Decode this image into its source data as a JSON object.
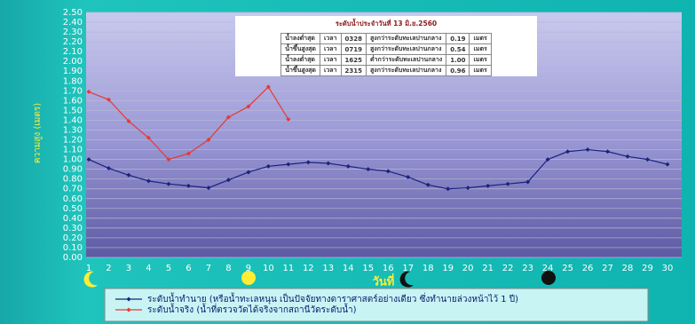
{
  "chart_data": {
    "type": "line",
    "y_label": "ความสูง (เมตร)",
    "x_label": "วันที่",
    "categories": [
      "1",
      "2",
      "3",
      "4",
      "5",
      "6",
      "7",
      "8",
      "9",
      "10",
      "11",
      "12",
      "13",
      "14",
      "15",
      "16",
      "17",
      "18",
      "19",
      "20",
      "21",
      "22",
      "23",
      "24",
      "25",
      "26",
      "27",
      "28",
      "29",
      "30"
    ],
    "series": [
      {
        "name": "ระดับน้ำทำนาย (หรือน้ำทะเลหนุน เป็นปัจจัยทางดาราศาสตร์อย่างเดียว ซึ่งทำนายล่วงหน้าไว้ 1 ปี)",
        "color": "#1a237e",
        "values": [
          1.0,
          0.91,
          0.84,
          0.78,
          0.75,
          0.73,
          0.71,
          0.79,
          0.87,
          0.93,
          0.95,
          0.97,
          0.96,
          0.93,
          0.9,
          0.88,
          0.82,
          0.74,
          0.7,
          0.71,
          0.73,
          0.75,
          0.77,
          1.0,
          1.08,
          1.1,
          1.08,
          1.03,
          1.0,
          0.95
        ]
      },
      {
        "name": "ระดับน้ำจริง (น้ำที่ตรวจวัดได้จริงจากสถานีวัดระดับน้ำ)",
        "color": "#e53935",
        "values": [
          1.69,
          1.61,
          1.39,
          1.22,
          1.0,
          1.06,
          1.2,
          1.43,
          1.54,
          1.74,
          1.41,
          null,
          null,
          null,
          null,
          null,
          null,
          null,
          null,
          null,
          null,
          null,
          null,
          null,
          null,
          null,
          null,
          null,
          null,
          null
        ]
      }
    ],
    "ylim": [
      0,
      2.5
    ],
    "yticks": [
      {
        "value": 0,
        "label": "0.00"
      },
      {
        "value": 0.1,
        "label": "0.10"
      },
      {
        "value": 0.2,
        "label": "0.20"
      },
      {
        "value": 0.3,
        "label": "0.30"
      },
      {
        "value": 0.4,
        "label": "0.40"
      },
      {
        "value": 0.5,
        "label": "0.50"
      },
      {
        "value": 0.6,
        "label": "0.60"
      },
      {
        "value": 0.7,
        "label": "0.70"
      },
      {
        "value": 0.8,
        "label": "0.80"
      },
      {
        "value": 0.9,
        "label": "0.90"
      },
      {
        "value": 1,
        "label": "1.00"
      },
      {
        "value": 1.1,
        "label": "1.10"
      },
      {
        "value": 1.2,
        "label": "1.20"
      },
      {
        "value": 1.3,
        "label": "1.30"
      },
      {
        "value": 1.4,
        "label": "1.40"
      },
      {
        "value": 1.5,
        "label": "1.50"
      },
      {
        "value": 1.6,
        "label": "1.60"
      },
      {
        "value": 1.7,
        "label": "1.70"
      },
      {
        "value": 1.8,
        "label": "1.80"
      },
      {
        "value": 1.9,
        "label": "1.90"
      },
      {
        "value": 2,
        "label": "2.00"
      },
      {
        "value": 2.1,
        "label": "2.10"
      },
      {
        "value": 2.2,
        "label": "2.20"
      },
      {
        "value": 2.3,
        "label": "2.30"
      },
      {
        "value": 2.4,
        "label": "2.40"
      },
      {
        "value": 2.5,
        "label": "2.50"
      }
    ],
    "grid": true,
    "info_table": {
      "title": "ระดับน้ำประจำวันที่ 13 มิ.ย.2560",
      "rows": [
        [
          "น้ำลงต่ำสุด",
          "เวลา",
          "0328",
          "สูงกว่าระดับทะเลปานกลาง",
          "0.19",
          "เมตร"
        ],
        [
          "น้ำขึ้นสูงสุด",
          "เวลา",
          "0719",
          "สูงกว่าระดับทะเลปานกลาง",
          "0.54",
          "เมตร"
        ],
        [
          "น้ำลงต่ำสุด",
          "เวลา",
          "1625",
          "ต่ำกว่าระดับทะเลปานกลาง",
          "1.00",
          "เมตร"
        ],
        [
          "น้ำขึ้นสูงสุด",
          "เวลา",
          "2315",
          "สูงกว่าระดับทะเลปานกลาง",
          "0.96",
          "เมตร"
        ]
      ]
    }
  }
}
